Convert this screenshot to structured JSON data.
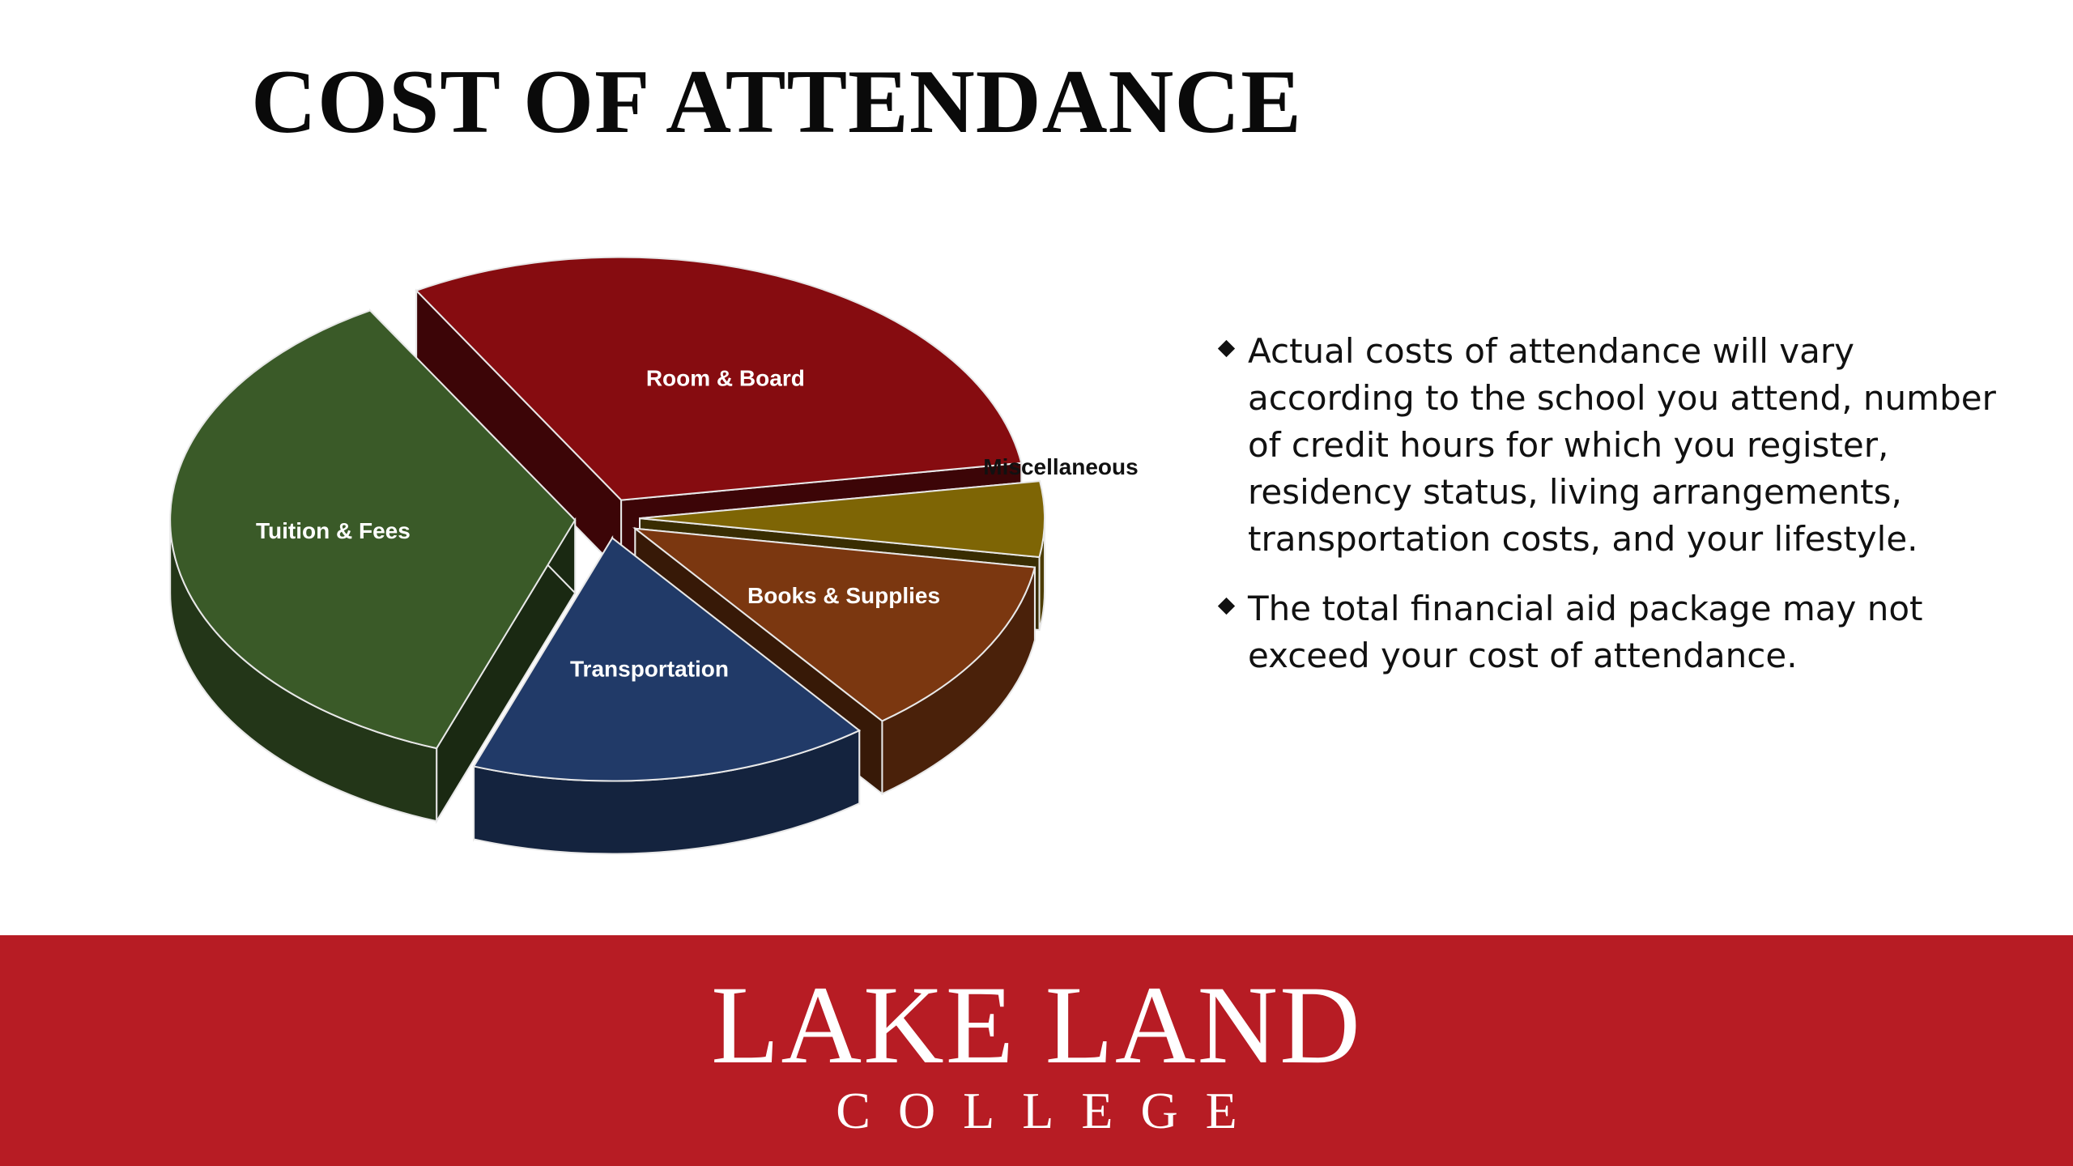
{
  "slide": {
    "title": "COST OF ATTENDANCE"
  },
  "chart_data": {
    "type": "pie",
    "three_d": true,
    "exploded": true,
    "title": "",
    "categories": [
      "Tuition & Fees",
      "Room & Board",
      "Miscellaneous",
      "Books & Supplies",
      "Transportation"
    ],
    "values": [
      36,
      31,
      5,
      12,
      16
    ],
    "colors": [
      "#3a5a28",
      "#860c10",
      "#7e6505",
      "#7b3710",
      "#213a68"
    ],
    "label_colors": [
      "#ffffff",
      "#ffffff",
      "#111111",
      "#ffffff",
      "#ffffff"
    ],
    "legend": "none"
  },
  "bullets": [
    "Actual costs of attendance will vary according to the school you attend, number of credit hours for which you register, residency status, living arrangements, transportation costs, and your lifestyle.",
    "The total financial aid package may not exceed your cost of attendance."
  ],
  "logo": {
    "line1": "LAKE LAND",
    "line2": "COLLEGE",
    "color": "#b71c24"
  }
}
